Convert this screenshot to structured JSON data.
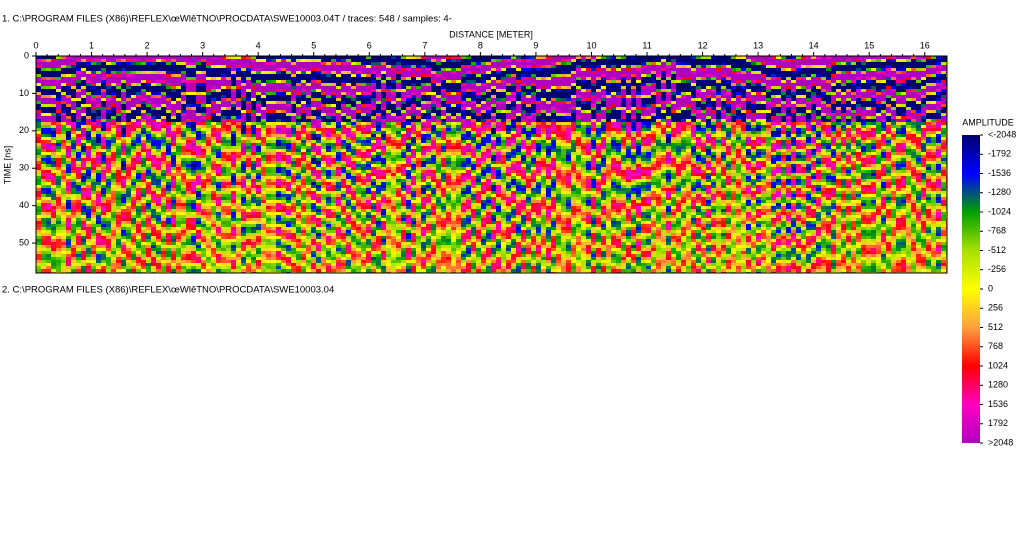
{
  "panels": [
    {
      "header": "1. C:\\PROGRAM FILES (X86)\\REFLEX\\œWlêTNO\\PROCDATA\\SWE10003.04T / traces: 548 / samples: 4-"
    },
    {
      "header": "2. C:\\PROGRAM FILES (X86)\\REFLEX\\œWlêTNO\\PROCDATA\\SWE10003.04"
    }
  ],
  "chart_data": {
    "type": "heatmap",
    "x_label": "DISTANCE [METER]",
    "y_label": "TIME [ns]",
    "xlim": [
      0,
      16.4
    ],
    "xticks": [
      0,
      1,
      2,
      3,
      4,
      5,
      6,
      7,
      8,
      9,
      10,
      11,
      12,
      13,
      14,
      15,
      16
    ],
    "ylim": [
      0,
      58
    ],
    "yticks": [
      0,
      10,
      20,
      30,
      40,
      50
    ],
    "colorbar_title": "AMPLITUDE",
    "clim": [
      -2048,
      2048
    ],
    "cticks": [
      {
        "value": -2048,
        "label": "<-2048"
      },
      -1792,
      -1536,
      -1280,
      -1024,
      -768,
      -512,
      -256,
      0,
      256,
      512,
      768,
      1024,
      1280,
      1536,
      1792,
      {
        "value": 2048,
        "label": ">2048"
      }
    ],
    "colorscale": [
      "#000070",
      "#0000ff",
      "#00a000",
      "#a8e000",
      "#ffff00",
      "#ffa040",
      "#ff0000",
      "#ff00c0",
      "#b000c0"
    ]
  }
}
